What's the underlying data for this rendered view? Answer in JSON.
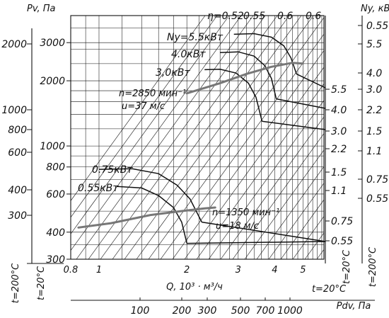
{
  "chart_data": {
    "type": "line",
    "x_axis": {
      "label": "Q, 10³ · м³/ч",
      "scale": "log",
      "range": [
        0.8,
        5.9
      ],
      "ticks": [
        "0.8",
        "1",
        "2",
        "3",
        "4",
        "5"
      ]
    },
    "pv_axis": {
      "label": "Pv, Па",
      "ticks": [
        "2000",
        "1000",
        "800",
        "600",
        "400",
        "300"
      ]
    },
    "main_y_axis": {
      "scale": "log",
      "range": [
        300,
        4000
      ],
      "ticks": [
        "3000",
        "2000",
        "1000",
        "800",
        "600",
        "400",
        "300"
      ]
    },
    "pdv_axis": {
      "label": "Pdv, Па",
      "ticks": [
        "100",
        "200",
        "300",
        "500",
        "700",
        "1000"
      ]
    },
    "ny_axis": {
      "label": "Ny, кВт",
      "ticks_a": [
        "5.5",
        "4.0",
        "3.0",
        "2.2",
        "1.5",
        "1.1",
        "0.75",
        "0.55"
      ],
      "ticks_b": [
        "0.55",
        "5.5",
        "4.0",
        "3.0",
        "2.2",
        "1.5",
        "1.1",
        "0.75",
        "0.55"
      ]
    },
    "efficiency_labels": [
      "η=0.52",
      "0.55",
      "0.6",
      "0.6"
    ],
    "temperature_labels": [
      "t=200°C",
      "t=20°C"
    ],
    "high_speed": {
      "label_n": "n=2850 мин⁻¹",
      "label_u": "u=37 м/с",
      "system_curve": [
        [
          2.0,
          1750
        ],
        [
          2.6,
          1950
        ],
        [
          3.2,
          2150
        ],
        [
          3.9,
          2320
        ],
        [
          4.6,
          2420
        ],
        [
          5.0,
          2400
        ]
      ],
      "curves": [
        {
          "name": "Ny=5.5кВт",
          "points": [
            [
              2.9,
              3280
            ],
            [
              3.4,
              3300
            ],
            [
              3.9,
              3180
            ],
            [
              4.3,
              2900
            ],
            [
              4.55,
              2550
            ],
            [
              4.75,
              2150
            ]
          ],
          "power": "5.5"
        },
        {
          "name": "4.0кВт",
          "points": [
            [
              2.6,
              2700
            ],
            [
              3.0,
              2720
            ],
            [
              3.4,
              2600
            ],
            [
              3.7,
              2350
            ],
            [
              3.9,
              2050
            ],
            [
              4.05,
              1650
            ]
          ],
          "power": "4.0"
        },
        {
          "name": "3,0кВт",
          "points": [
            [
              2.3,
              2250
            ],
            [
              2.6,
              2260
            ],
            [
              2.95,
              2170
            ],
            [
              3.25,
              1950
            ],
            [
              3.45,
              1680
            ],
            [
              3.62,
              1300
            ]
          ],
          "power": "3.0"
        }
      ]
    },
    "low_speed": {
      "label_n": "n=1350 мин⁻¹",
      "label_u": "u=18 м/с",
      "system_curve": [
        [
          0.85,
          420
        ],
        [
          1.1,
          440
        ],
        [
          1.5,
          480
        ],
        [
          1.9,
          500
        ],
        [
          2.3,
          515
        ],
        [
          2.5,
          520
        ]
      ],
      "curves": [
        {
          "name": "0.75кВт",
          "points": [
            [
              1.0,
              780
            ],
            [
              1.3,
              785
            ],
            [
              1.6,
              745
            ],
            [
              1.85,
              660
            ],
            [
              2.05,
              570
            ],
            [
              2.25,
              445
            ]
          ],
          "power": "0.75"
        },
        {
          "name": "0.55кВт",
          "points": [
            [
              1.15,
              650
            ],
            [
              1.4,
              640
            ],
            [
              1.6,
              590
            ],
            [
              1.8,
              520
            ],
            [
              1.92,
              445
            ],
            [
              2.0,
              355
            ]
          ],
          "power": "0.55"
        }
      ]
    }
  }
}
